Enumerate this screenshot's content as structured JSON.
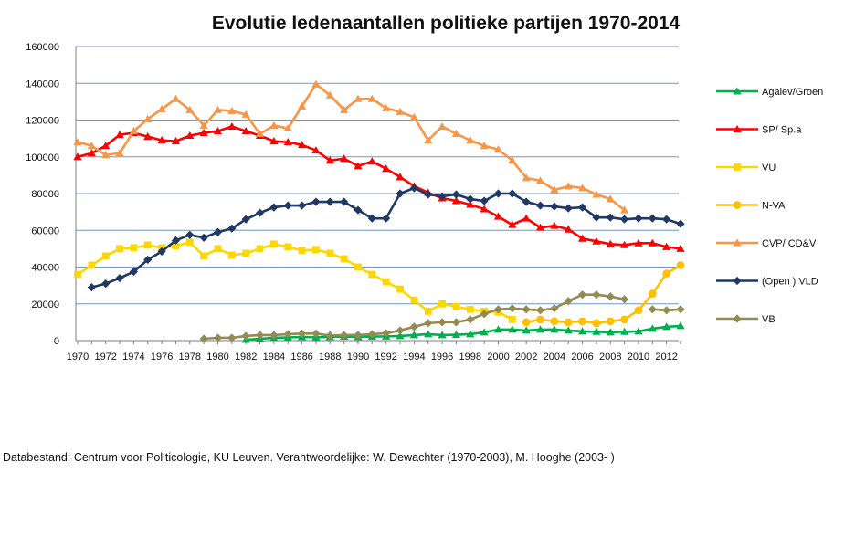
{
  "chart_data": {
    "type": "line",
    "title": "Evolutie ledenaantallen politieke partijen 1970-2014",
    "ylim": [
      0,
      160000
    ],
    "yticks": [
      0,
      20000,
      40000,
      60000,
      80000,
      100000,
      120000,
      140000,
      160000
    ],
    "xticks": [
      1970,
      1972,
      1974,
      1976,
      1978,
      1980,
      1982,
      1984,
      1986,
      1988,
      1990,
      1992,
      1994,
      1996,
      1998,
      2000,
      2002,
      2004,
      2006,
      2008,
      2010,
      2012
    ],
    "xlim": [
      1970,
      2013
    ],
    "grid": "horizontal",
    "legend_position": "right",
    "series": [
      {
        "name": "Agalev/Groen",
        "color": "#00B050",
        "marker": "triangle",
        "x": [
          1982,
          1983,
          1984,
          1985,
          1986,
          1987,
          1988,
          1989,
          1990,
          1991,
          1992,
          1993,
          1994,
          1995,
          1996,
          1997,
          1998,
          1999,
          2000,
          2001,
          2002,
          2003,
          2004,
          2005,
          2006,
          2007,
          2008,
          2009,
          2010,
          2011,
          2012,
          2013
        ],
        "y": [
          500,
          1000,
          1500,
          1700,
          2000,
          1800,
          2000,
          2200,
          2000,
          2200,
          2300,
          2500,
          3000,
          3500,
          3000,
          3200,
          3500,
          4500,
          6000,
          6000,
          5500,
          6000,
          6000,
          5500,
          5000,
          4800,
          4500,
          4800,
          5000,
          6500,
          7500,
          8000
        ]
      },
      {
        "name": "SP/ Sp.a",
        "color": "#FF0000",
        "marker": "triangle",
        "x": [
          1970,
          1971,
          1972,
          1973,
          1974,
          1975,
          1976,
          1977,
          1978,
          1979,
          1980,
          1981,
          1982,
          1983,
          1984,
          1985,
          1986,
          1987,
          1988,
          1989,
          1990,
          1991,
          1992,
          1993,
          1994,
          1995,
          1996,
          1997,
          1998,
          1999,
          2000,
          2001,
          2002,
          2003,
          2004,
          2005,
          2006,
          2007,
          2008,
          2009,
          2010,
          2011,
          2012,
          2013
        ],
        "y": [
          100000,
          102000,
          106000,
          112000,
          113000,
          111000,
          109000,
          108500,
          111500,
          113000,
          114000,
          116500,
          114000,
          111500,
          108500,
          108000,
          106500,
          103500,
          98000,
          99000,
          95000,
          97500,
          93500,
          89000,
          84000,
          80500,
          77500,
          76000,
          74000,
          71500,
          67500,
          63000,
          66500,
          61500,
          62500,
          60500,
          55500,
          54000,
          52500,
          52000,
          53000,
          53000,
          51000,
          50000
        ]
      },
      {
        "name": "VU",
        "color": "#FFD700",
        "marker": "square",
        "x": [
          1970,
          1971,
          1972,
          1973,
          1974,
          1975,
          1976,
          1977,
          1978,
          1979,
          1980,
          1981,
          1982,
          1983,
          1984,
          1985,
          1986,
          1987,
          1988,
          1989,
          1990,
          1991,
          1992,
          1993,
          1994,
          1995,
          1996,
          1997,
          1998,
          1999,
          2000,
          2001
        ],
        "y": [
          36000,
          41000,
          46000,
          50000,
          50500,
          52000,
          50500,
          51500,
          53500,
          46000,
          50000,
          46500,
          47500,
          50000,
          52500,
          51000,
          49000,
          49500,
          47500,
          44500,
          40000,
          36000,
          32000,
          28000,
          22000,
          16000,
          20000,
          18500,
          17000,
          16000,
          15500,
          11500
        ]
      },
      {
        "name": "N-VA",
        "color": "#FFC000",
        "marker": "circle",
        "x": [
          2002,
          2003,
          2004,
          2005,
          2006,
          2007,
          2008,
          2009,
          2010,
          2011,
          2012,
          2013
        ],
        "y": [
          10000,
          11500,
          10500,
          10000,
          10500,
          9500,
          10500,
          11500,
          16500,
          25500,
          36500,
          41000
        ]
      },
      {
        "name": "CVP/ CD&V",
        "color": "#F79646",
        "marker": "triangle",
        "x": [
          1970,
          1971,
          1972,
          1973,
          1974,
          1975,
          1976,
          1977,
          1978,
          1979,
          1980,
          1981,
          1982,
          1983,
          1984,
          1985,
          1986,
          1987,
          1988,
          1989,
          1990,
          1991,
          1992,
          1993,
          1994,
          1995,
          1996,
          1997,
          1998,
          1999,
          2000,
          2001,
          2002,
          2003,
          2004,
          2005,
          2006,
          2007,
          2008,
          2009
        ],
        "y": [
          108000,
          106000,
          101000,
          102000,
          114000,
          120500,
          126000,
          131500,
          125500,
          117000,
          125500,
          125000,
          123000,
          112500,
          117000,
          115500,
          127500,
          139500,
          133500,
          125500,
          131500,
          131500,
          126500,
          124500,
          121500,
          109000,
          116500,
          112500,
          109000,
          106000,
          104000,
          98000,
          88500,
          87000,
          82000,
          84000,
          83000,
          79500,
          77000,
          71000
        ]
      },
      {
        "name": "(Open ) VLD",
        "color": "#1F3864",
        "marker": "diamond",
        "x": [
          1971,
          1972,
          1973,
          1974,
          1975,
          1976,
          1977,
          1978,
          1979,
          1980,
          1981,
          1982,
          1983,
          1984,
          1985,
          1986,
          1987,
          1988,
          1989,
          1990,
          1991,
          1992,
          1993,
          1994,
          1995,
          1996,
          1997,
          1998,
          1999,
          2000,
          2001,
          2002,
          2003,
          2004,
          2005,
          2006,
          2007,
          2008,
          2009,
          2010,
          2011,
          2012,
          2013
        ],
        "y": [
          29000,
          31000,
          34000,
          37500,
          44000,
          48500,
          54500,
          57500,
          56000,
          59000,
          61000,
          66000,
          69500,
          72500,
          73500,
          73500,
          75500,
          75500,
          75500,
          71000,
          66500,
          66500,
          80000,
          83000,
          79500,
          78500,
          79500,
          77000,
          76000,
          80000,
          80000,
          75500,
          73500,
          73000,
          72000,
          72500,
          67000,
          67000,
          66000,
          66500,
          66500,
          66000,
          63500
        ]
      },
      {
        "name": "VB",
        "color": "#948A54",
        "marker": "diamond",
        "x": [
          1979,
          1980,
          1981,
          1982,
          1983,
          1984,
          1985,
          1986,
          1987,
          1988,
          1989,
          1990,
          1991,
          1992,
          1993,
          1994,
          1995,
          1996,
          1997,
          1998,
          1999,
          2000,
          2001,
          2002,
          2003,
          2004,
          2005,
          2006,
          2007,
          2008,
          2009,
          2010,
          2011,
          2012,
          2013
        ],
        "y": [
          1000,
          1500,
          1500,
          2500,
          3000,
          3000,
          3500,
          3800,
          3800,
          2800,
          3000,
          3000,
          3500,
          4000,
          5500,
          7500,
          9500,
          10000,
          10000,
          11500,
          14500,
          17000,
          17500,
          17000,
          16500,
          17500,
          21500,
          25000,
          25000,
          24000,
          22500,
          null,
          17000,
          16500,
          17000
        ]
      }
    ]
  },
  "footnote": "Databestand: Centrum voor Politicologie, KU Leuven. Verantwoordelijke: W. Dewachter (1970-2003), M. Hooghe (2003-   )"
}
